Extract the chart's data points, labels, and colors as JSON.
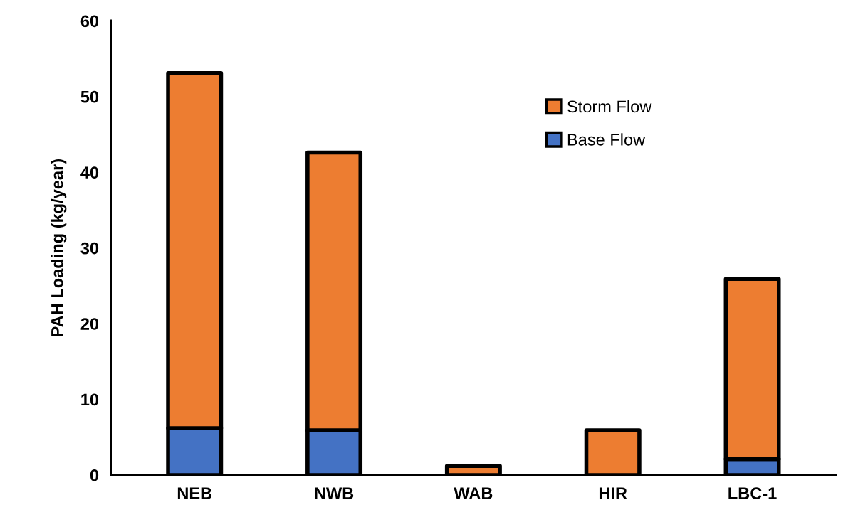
{
  "chart_data": {
    "type": "bar",
    "stacked": true,
    "ylabel": "PAH Loading (kg/year)",
    "categories": [
      "NEB",
      "NWB",
      "WAB",
      "HIR",
      "LBC-1"
    ],
    "series": [
      {
        "name": "Base Flow",
        "color": "#4472c4",
        "values": [
          6.2,
          5.9,
          null,
          null,
          2.1
        ]
      },
      {
        "name": "Storm Flow",
        "color": "#ed7d31",
        "values": [
          46.9,
          36.7,
          1.2,
          5.9,
          23.8
        ]
      }
    ],
    "ylim": [
      0,
      60
    ],
    "yticks": [
      0,
      10,
      20,
      30,
      40,
      50,
      60
    ],
    "legend": "top right",
    "grid": false
  }
}
